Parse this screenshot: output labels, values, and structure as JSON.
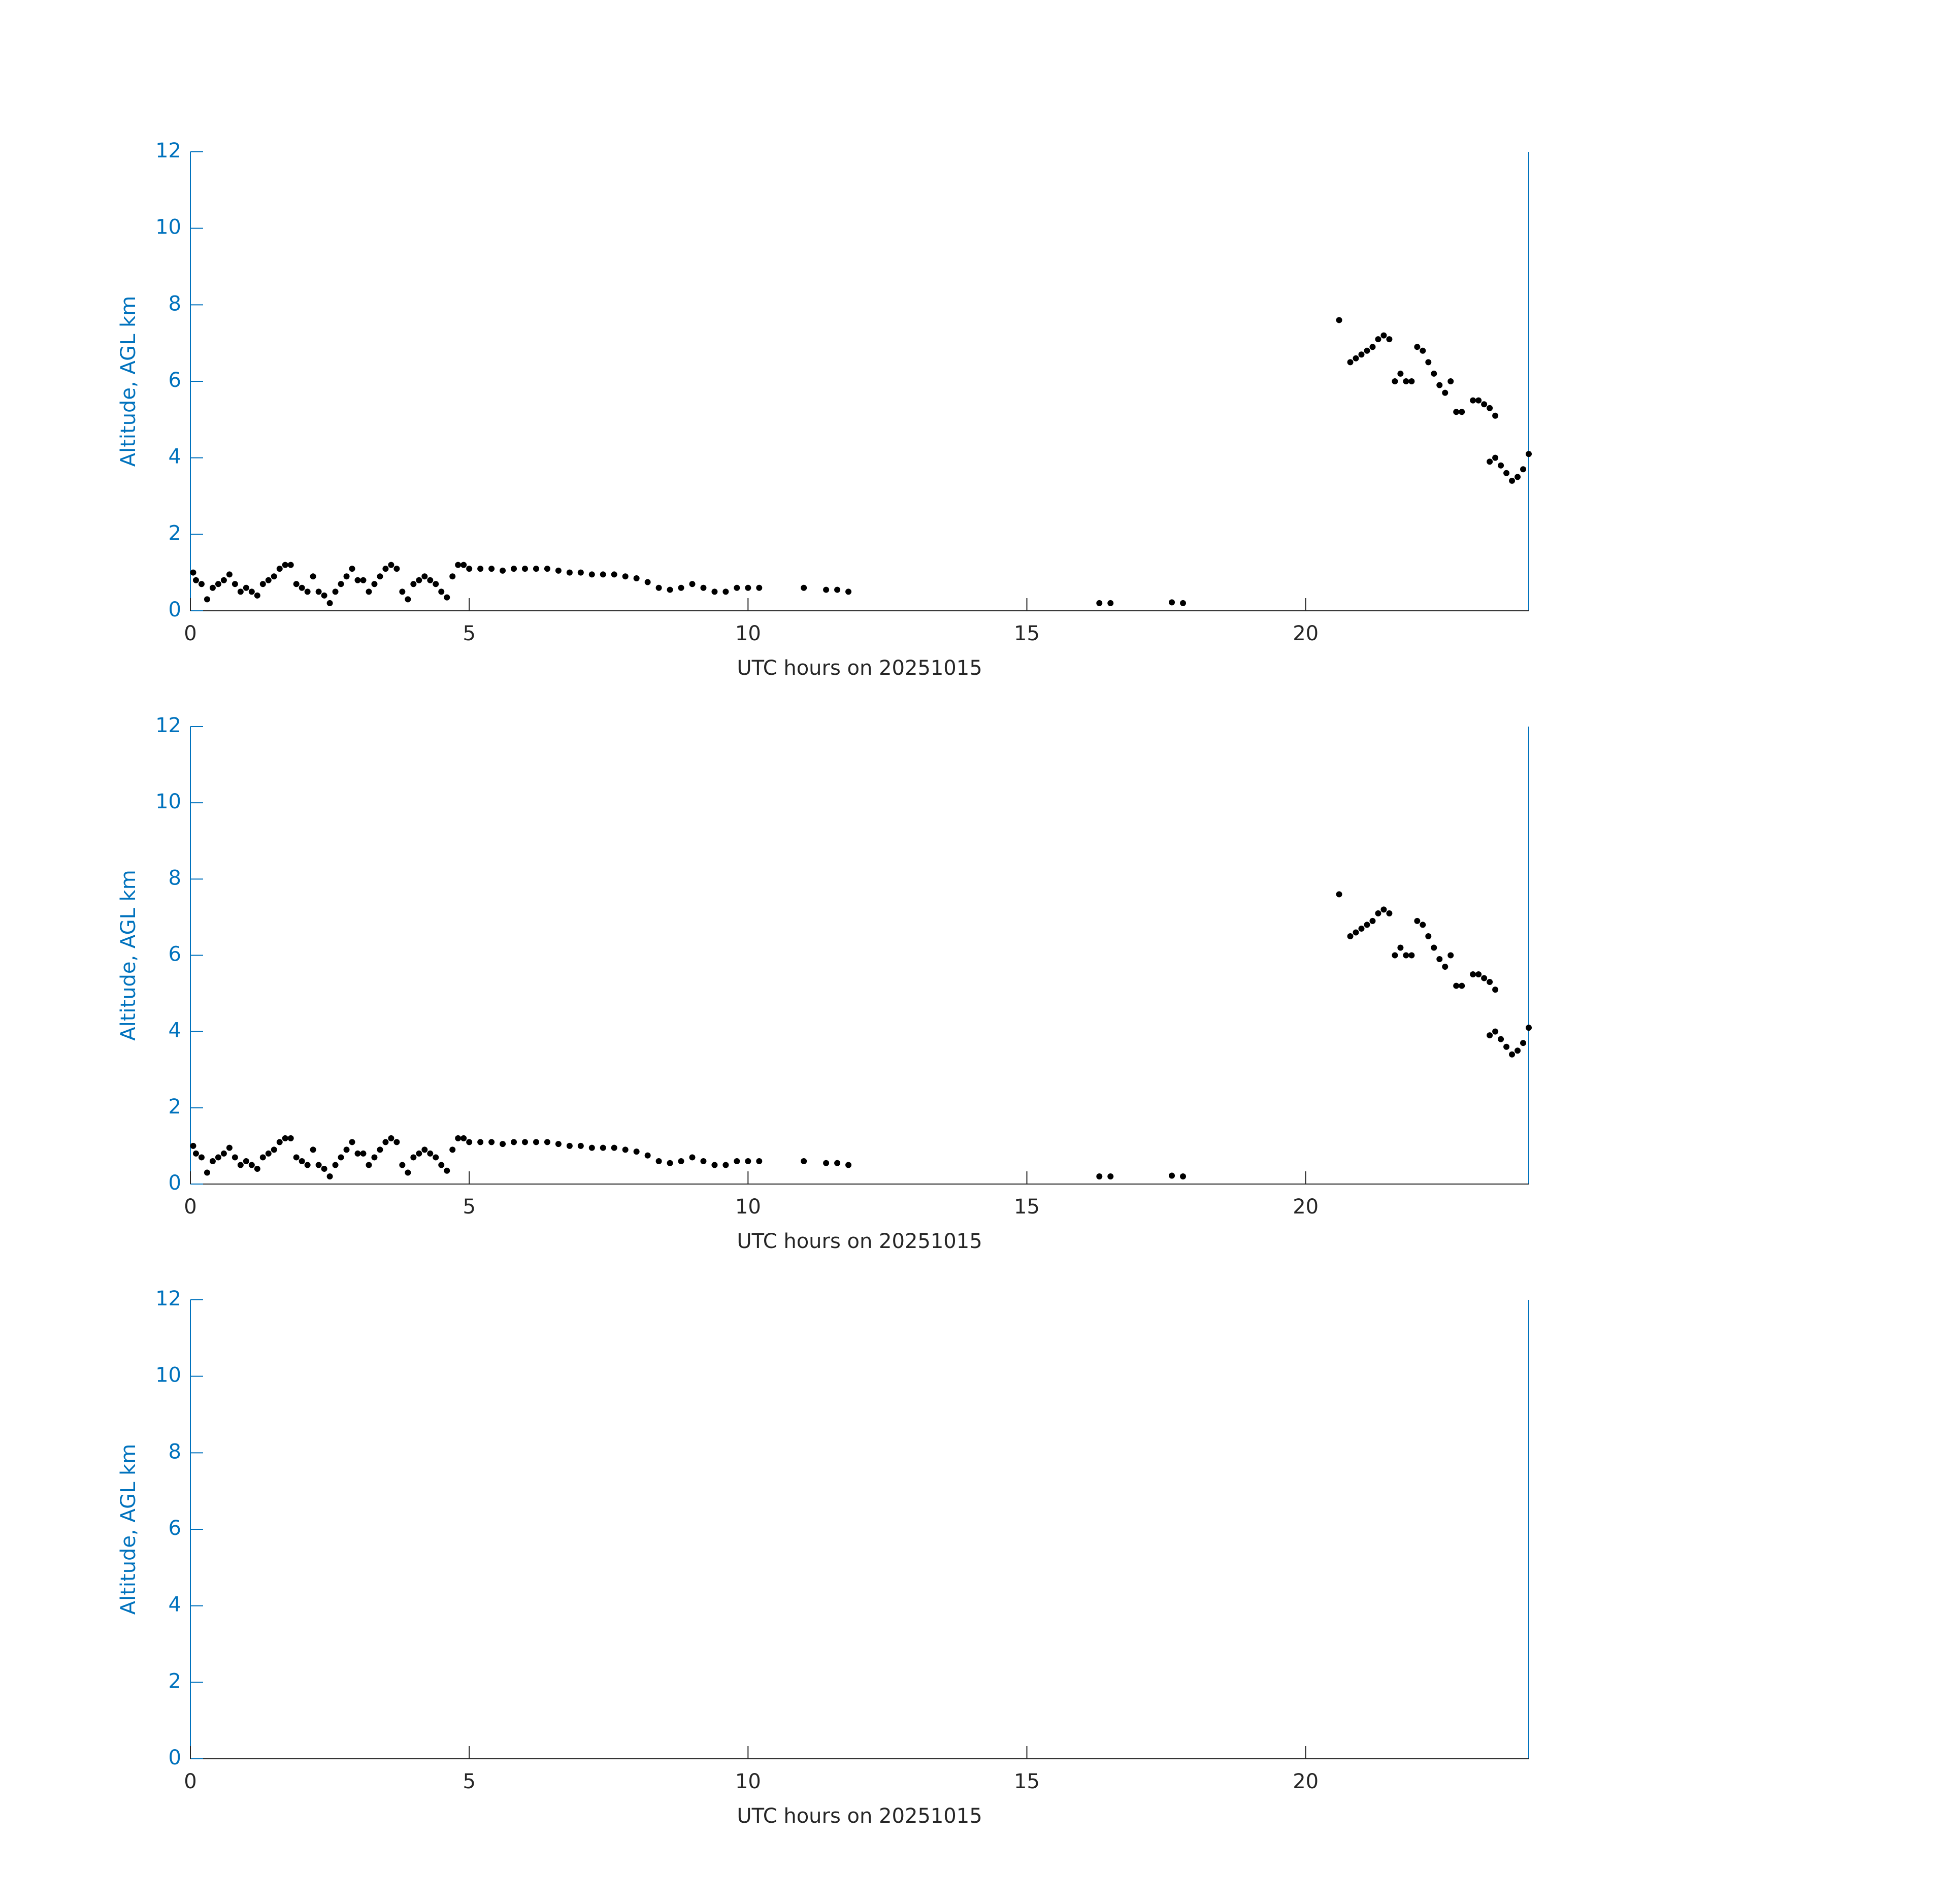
{
  "chart_data": [
    {
      "type": "scatter",
      "xlabel": "UTC hours on 20251015",
      "ylabel": "Altitude, AGL km",
      "xlim": [
        0,
        24
      ],
      "ylim": [
        0,
        12
      ],
      "xticks": [
        0,
        5,
        10,
        15,
        20
      ],
      "yticks": [
        0,
        2,
        4,
        6,
        8,
        10,
        12
      ],
      "color": "#000000",
      "axis_color": "#0072bd",
      "x": [
        0.05,
        0.1,
        0.2,
        0.3,
        0.4,
        0.5,
        0.6,
        0.7,
        0.8,
        0.9,
        1.0,
        1.1,
        1.2,
        1.3,
        1.4,
        1.5,
        1.6,
        1.7,
        1.8,
        1.9,
        2.0,
        2.1,
        2.2,
        2.3,
        2.4,
        2.5,
        2.6,
        2.7,
        2.8,
        2.9,
        3.0,
        3.1,
        3.2,
        3.3,
        3.4,
        3.5,
        3.6,
        3.7,
        3.8,
        3.9,
        4.0,
        4.1,
        4.2,
        4.3,
        4.4,
        4.5,
        4.6,
        4.7,
        4.8,
        4.9,
        5.0,
        5.2,
        5.4,
        5.6,
        5.8,
        6.0,
        6.2,
        6.4,
        6.6,
        6.8,
        7.0,
        7.2,
        7.4,
        7.6,
        7.8,
        8.0,
        8.2,
        8.4,
        8.6,
        8.8,
        9.0,
        9.2,
        9.4,
        9.6,
        9.8,
        10.0,
        10.2,
        11.0,
        11.4,
        11.6,
        11.8,
        16.3,
        16.5,
        17.6,
        17.8,
        20.6,
        20.8,
        20.9,
        21.0,
        21.1,
        21.2,
        21.3,
        21.4,
        21.5,
        21.6,
        21.7,
        21.8,
        21.9,
        22.0,
        22.1,
        22.2,
        22.3,
        22.4,
        22.5,
        22.6,
        22.7,
        22.8,
        23.0,
        23.1,
        23.2,
        23.3,
        23.4,
        23.3,
        23.4,
        23.5,
        23.6,
        23.7,
        23.8,
        23.9,
        24.0
      ],
      "y": [
        1.0,
        0.8,
        0.7,
        0.3,
        0.6,
        0.7,
        0.8,
        0.95,
        0.7,
        0.5,
        0.6,
        0.5,
        0.4,
        0.7,
        0.8,
        0.9,
        1.1,
        1.2,
        1.2,
        0.7,
        0.6,
        0.5,
        0.9,
        0.5,
        0.4,
        0.2,
        0.5,
        0.7,
        0.9,
        1.1,
        0.8,
        0.8,
        0.5,
        0.7,
        0.9,
        1.1,
        1.2,
        1.1,
        0.5,
        0.3,
        0.7,
        0.8,
        0.9,
        0.8,
        0.7,
        0.5,
        0.35,
        0.9,
        1.2,
        1.2,
        1.1,
        1.1,
        1.1,
        1.05,
        1.1,
        1.1,
        1.1,
        1.1,
        1.05,
        1.0,
        1.0,
        0.95,
        0.95,
        0.95,
        0.9,
        0.85,
        0.75,
        0.6,
        0.55,
        0.6,
        0.7,
        0.6,
        0.5,
        0.5,
        0.6,
        0.6,
        0.6,
        0.6,
        0.55,
        0.55,
        0.5,
        0.2,
        0.2,
        0.22,
        0.2,
        7.6,
        6.5,
        6.6,
        6.7,
        6.8,
        6.9,
        7.1,
        7.2,
        7.1,
        6.0,
        6.2,
        6.0,
        6.0,
        6.9,
        6.8,
        6.5,
        6.2,
        5.9,
        5.7,
        6.0,
        5.2,
        5.2,
        5.5,
        5.5,
        5.4,
        5.3,
        5.1,
        3.9,
        4.0,
        3.8,
        3.6,
        3.4,
        3.5,
        3.7,
        4.1
      ]
    },
    {
      "type": "scatter",
      "xlabel": "UTC hours on 20251015",
      "ylabel": "Altitude, AGL km",
      "xlim": [
        0,
        24
      ],
      "ylim": [
        0,
        12
      ],
      "xticks": [
        0,
        5,
        10,
        15,
        20
      ],
      "yticks": [
        0,
        2,
        4,
        6,
        8,
        10,
        12
      ],
      "color": "#000000",
      "axis_color": "#0072bd",
      "x": [
        0.05,
        0.1,
        0.2,
        0.3,
        0.4,
        0.5,
        0.6,
        0.7,
        0.8,
        0.9,
        1.0,
        1.1,
        1.2,
        1.3,
        1.4,
        1.5,
        1.6,
        1.7,
        1.8,
        1.9,
        2.0,
        2.1,
        2.2,
        2.3,
        2.4,
        2.5,
        2.6,
        2.7,
        2.8,
        2.9,
        3.0,
        3.1,
        3.2,
        3.3,
        3.4,
        3.5,
        3.6,
        3.7,
        3.8,
        3.9,
        4.0,
        4.1,
        4.2,
        4.3,
        4.4,
        4.5,
        4.6,
        4.7,
        4.8,
        4.9,
        5.0,
        5.2,
        5.4,
        5.6,
        5.8,
        6.0,
        6.2,
        6.4,
        6.6,
        6.8,
        7.0,
        7.2,
        7.4,
        7.6,
        7.8,
        8.0,
        8.2,
        8.4,
        8.6,
        8.8,
        9.0,
        9.2,
        9.4,
        9.6,
        9.8,
        10.0,
        10.2,
        11.0,
        11.4,
        11.6,
        11.8,
        16.3,
        16.5,
        17.6,
        17.8,
        20.6,
        20.8,
        20.9,
        21.0,
        21.1,
        21.2,
        21.3,
        21.4,
        21.5,
        21.6,
        21.7,
        21.8,
        21.9,
        22.0,
        22.1,
        22.2,
        22.3,
        22.4,
        22.5,
        22.6,
        22.7,
        22.8,
        23.0,
        23.1,
        23.2,
        23.3,
        23.4,
        23.3,
        23.4,
        23.5,
        23.6,
        23.7,
        23.8,
        23.9,
        24.0
      ],
      "y": [
        1.0,
        0.8,
        0.7,
        0.3,
        0.6,
        0.7,
        0.8,
        0.95,
        0.7,
        0.5,
        0.6,
        0.5,
        0.4,
        0.7,
        0.8,
        0.9,
        1.1,
        1.2,
        1.2,
        0.7,
        0.6,
        0.5,
        0.9,
        0.5,
        0.4,
        0.2,
        0.5,
        0.7,
        0.9,
        1.1,
        0.8,
        0.8,
        0.5,
        0.7,
        0.9,
        1.1,
        1.2,
        1.1,
        0.5,
        0.3,
        0.7,
        0.8,
        0.9,
        0.8,
        0.7,
        0.5,
        0.35,
        0.9,
        1.2,
        1.2,
        1.1,
        1.1,
        1.1,
        1.05,
        1.1,
        1.1,
        1.1,
        1.1,
        1.05,
        1.0,
        1.0,
        0.95,
        0.95,
        0.95,
        0.9,
        0.85,
        0.75,
        0.6,
        0.55,
        0.6,
        0.7,
        0.6,
        0.5,
        0.5,
        0.6,
        0.6,
        0.6,
        0.6,
        0.55,
        0.55,
        0.5,
        0.2,
        0.2,
        0.22,
        0.2,
        7.6,
        6.5,
        6.6,
        6.7,
        6.8,
        6.9,
        7.1,
        7.2,
        7.1,
        6.0,
        6.2,
        6.0,
        6.0,
        6.9,
        6.8,
        6.5,
        6.2,
        5.9,
        5.7,
        6.0,
        5.2,
        5.2,
        5.5,
        5.5,
        5.4,
        5.3,
        5.1,
        3.9,
        4.0,
        3.8,
        3.6,
        3.4,
        3.5,
        3.7,
        4.1
      ]
    },
    {
      "type": "scatter",
      "xlabel": "UTC hours on 20251015",
      "ylabel": "Altitude, AGL km",
      "xlim": [
        0,
        24
      ],
      "ylim": [
        0,
        12
      ],
      "xticks": [
        0,
        5,
        10,
        15,
        20
      ],
      "yticks": [
        0,
        2,
        4,
        6,
        8,
        10,
        12
      ],
      "color": "#000000",
      "axis_color": "#0072bd",
      "x": [],
      "y": []
    }
  ]
}
